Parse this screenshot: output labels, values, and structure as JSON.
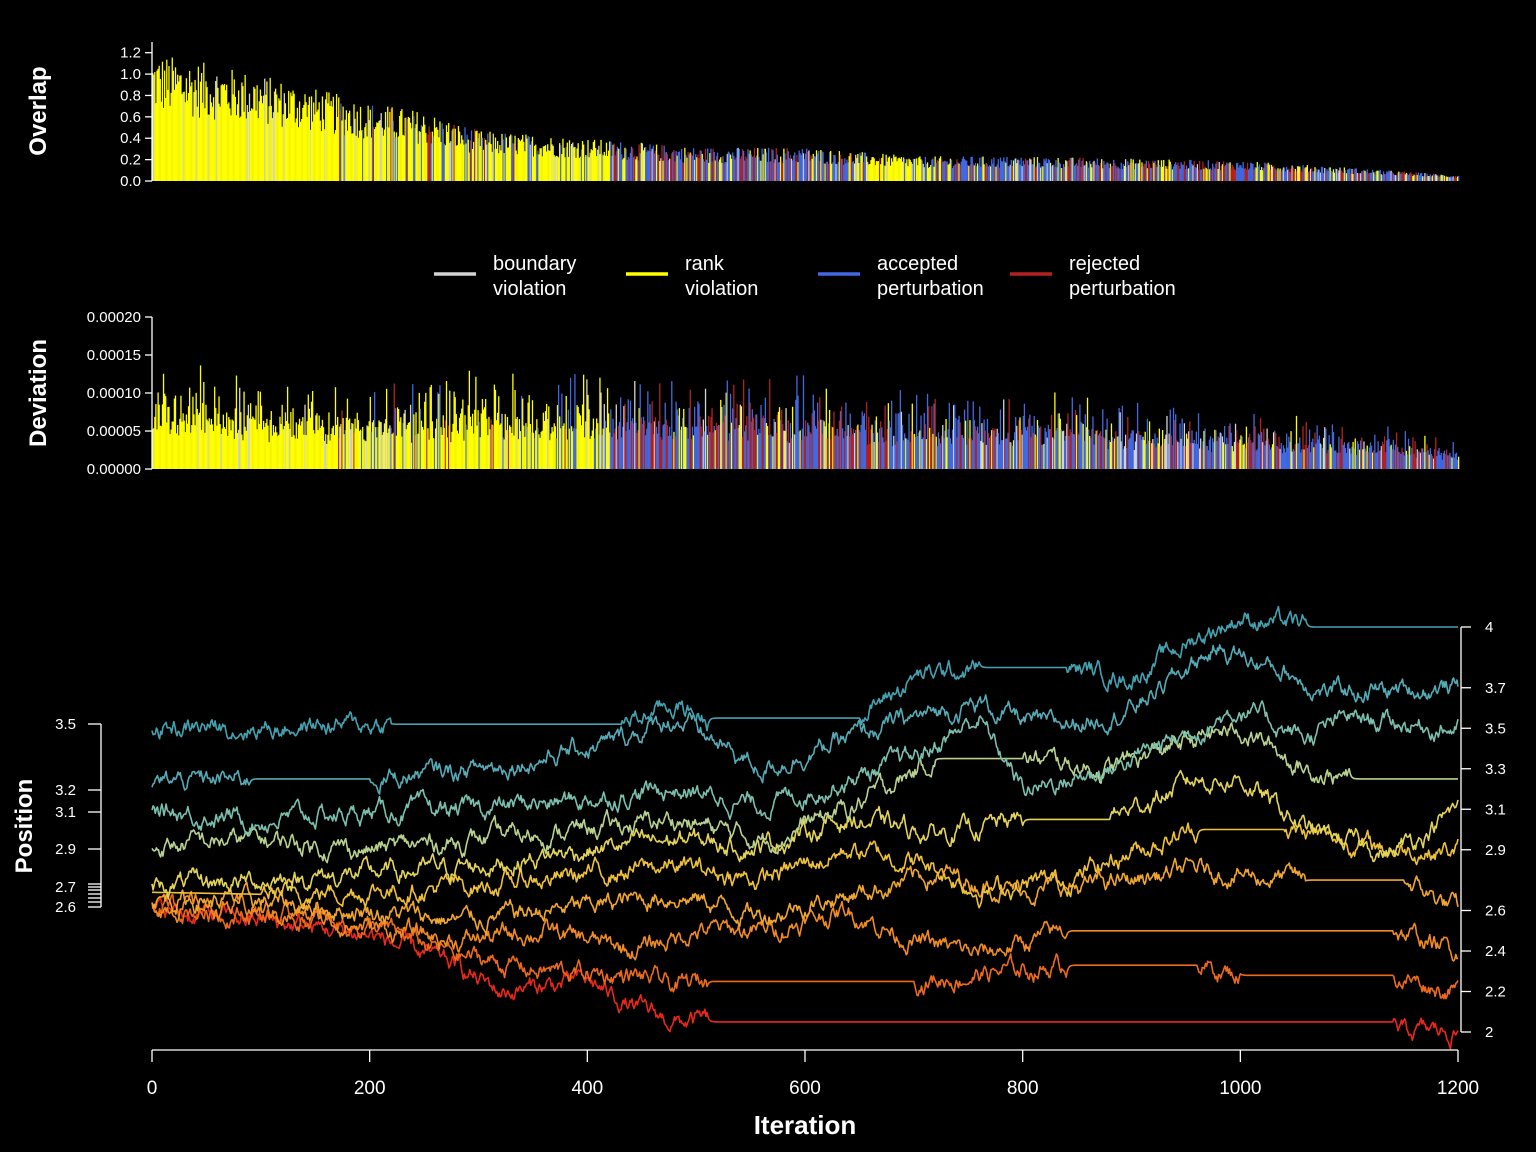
{
  "colors": {
    "boundary": "#d3d3d3",
    "rank": "#ffff00",
    "accepted": "#4169e1",
    "rejected": "#b22222",
    "background": "#000000",
    "text": "#ffffff"
  },
  "legend": {
    "placement": "between top and middle panels",
    "items": [
      {
        "key": "boundary",
        "line1": "boundary",
        "line2": "violation"
      },
      {
        "key": "rank",
        "line1": "rank",
        "line2": "violation"
      },
      {
        "key": "accepted",
        "line1": "accepted",
        "line2": "perturbation"
      },
      {
        "key": "rejected",
        "line1": "rejected",
        "line2": "perturbation"
      }
    ]
  },
  "chart_data": [
    {
      "type": "bar",
      "ylabel": "Overlap",
      "xlim": [
        0,
        1200
      ],
      "ylim": [
        0,
        1.3
      ],
      "yticks": [
        "0.0",
        "0.2",
        "0.4",
        "0.6",
        "0.8",
        "1.0",
        "1.2"
      ],
      "ytick_values": [
        0,
        0.2,
        0.4,
        0.6,
        0.8,
        1.0,
        1.2
      ],
      "note": "one bar per iteration, colored by step type",
      "envelope": [
        [
          0,
          1.15
        ],
        [
          100,
          0.95
        ],
        [
          200,
          0.7
        ],
        [
          250,
          0.62
        ],
        [
          300,
          0.45
        ],
        [
          400,
          0.38
        ],
        [
          500,
          0.3
        ],
        [
          600,
          0.3
        ],
        [
          700,
          0.22
        ],
        [
          800,
          0.22
        ],
        [
          1000,
          0.18
        ],
        [
          1100,
          0.12
        ],
        [
          1200,
          0.05
        ]
      ],
      "type_segments": [
        [
          0,
          170,
          "rank"
        ],
        [
          170,
          220,
          "mixed_rank"
        ],
        [
          220,
          260,
          "mixed_rank_acc"
        ],
        [
          260,
          420,
          "mixed_rank"
        ],
        [
          420,
          640,
          "mixed_all"
        ],
        [
          640,
          720,
          "mixed_rank"
        ],
        [
          720,
          1200,
          "mixed_all"
        ]
      ]
    },
    {
      "type": "bar",
      "ylabel": "Deviation",
      "xlim": [
        0,
        1200
      ],
      "ylim": [
        0,
        0.0002
      ],
      "yticks": [
        "0.00000",
        "0.00005",
        "0.00010",
        "0.00015",
        "0.00020"
      ],
      "ytick_values": [
        0,
        5e-05,
        0.0001,
        0.00015,
        0.0002
      ],
      "envelope": [
        [
          0,
          0.0001
        ],
        [
          200,
          9e-05
        ],
        [
          400,
          0.0001
        ],
        [
          500,
          0.0001
        ],
        [
          600,
          9e-05
        ],
        [
          700,
          8e-05
        ],
        [
          800,
          8e-05
        ],
        [
          1000,
          6e-05
        ],
        [
          1100,
          5e-05
        ],
        [
          1200,
          3e-05
        ]
      ],
      "type_segments": [
        [
          0,
          170,
          "rank"
        ],
        [
          170,
          420,
          "mixed_rank"
        ],
        [
          420,
          1200,
          "mixed_all"
        ]
      ]
    },
    {
      "type": "line",
      "xlabel": "Iteration",
      "ylabel": "Position",
      "xlim": [
        0,
        1200
      ],
      "xticks": [
        "0",
        "200",
        "400",
        "600",
        "800",
        "1000",
        "1200"
      ],
      "xtick_values": [
        0,
        200,
        400,
        600,
        800,
        1000,
        1200
      ],
      "left_axis": {
        "ticks": [
          "3.5",
          "3.2",
          "3.1",
          "2.9",
          "2.7",
          "2.6"
        ],
        "tick_values": [
          3.5,
          3.2,
          3.1,
          2.9,
          2.7,
          2.6
        ]
      },
      "right_axis": {
        "ticks": [
          "4",
          "3.7",
          "3.5",
          "3.3",
          "3.1",
          "2.9",
          "2.6",
          "2.4",
          "2.2",
          "2"
        ],
        "tick_values": [
          4.0,
          3.7,
          3.5,
          3.3,
          3.1,
          2.9,
          2.6,
          2.4,
          2.2,
          2.0
        ]
      },
      "series": [
        {
          "color": "#45a1b0",
          "start": 3.5,
          "end": 4.0,
          "anchors": [
            [
              0,
              3.5
            ],
            [
              220,
              3.52
            ],
            [
              430,
              3.52
            ],
            [
              450,
              3.55
            ],
            [
              480,
              3.62
            ],
            [
              510,
              3.55
            ],
            [
              650,
              3.55
            ],
            [
              700,
              3.75
            ],
            [
              760,
              3.8
            ],
            [
              840,
              3.8
            ],
            [
              900,
              3.75
            ],
            [
              960,
              3.95
            ],
            [
              1000,
              4.05
            ],
            [
              1060,
              4.0
            ],
            [
              1200,
              4.0
            ]
          ]
        },
        {
          "color": "#55aab5",
          "start": 3.2,
          "end": 3.7,
          "anchors": [
            [
              0,
              3.23
            ],
            [
              90,
              3.25
            ],
            [
              200,
              3.25
            ],
            [
              300,
              3.3
            ],
            [
              420,
              3.42
            ],
            [
              480,
              3.55
            ],
            [
              520,
              3.42
            ],
            [
              560,
              3.3
            ],
            [
              640,
              3.45
            ],
            [
              700,
              3.55
            ],
            [
              760,
              3.62
            ],
            [
              820,
              3.5
            ],
            [
              900,
              3.6
            ],
            [
              980,
              3.9
            ],
            [
              1040,
              3.78
            ],
            [
              1080,
              3.68
            ],
            [
              1200,
              3.7
            ]
          ]
        },
        {
          "color": "#7bbfae",
          "start": 3.1,
          "end": 3.5,
          "anchors": [
            [
              0,
              3.1
            ],
            [
              90,
              3.05
            ],
            [
              200,
              3.08
            ],
            [
              300,
              3.1
            ],
            [
              400,
              3.15
            ],
            [
              480,
              3.2
            ],
            [
              560,
              3.12
            ],
            [
              640,
              3.25
            ],
            [
              700,
              3.35
            ],
            [
              760,
              3.55
            ],
            [
              800,
              3.2
            ],
            [
              880,
              3.3
            ],
            [
              960,
              3.5
            ],
            [
              1000,
              3.6
            ],
            [
              1060,
              3.45
            ],
            [
              1100,
              3.55
            ],
            [
              1200,
              3.5
            ]
          ]
        },
        {
          "color": "#b8d18e",
          "start": 2.9,
          "end": 3.3,
          "anchors": [
            [
              0,
              2.92
            ],
            [
              100,
              2.95
            ],
            [
              200,
              2.9
            ],
            [
              300,
              2.95
            ],
            [
              400,
              3.0
            ],
            [
              480,
              3.05
            ],
            [
              560,
              2.95
            ],
            [
              640,
              3.1
            ],
            [
              720,
              3.35
            ],
            [
              800,
              3.35
            ],
            [
              880,
              3.3
            ],
            [
              960,
              3.45
            ],
            [
              1000,
              3.5
            ],
            [
              1060,
              3.3
            ],
            [
              1100,
              3.25
            ],
            [
              1200,
              3.25
            ]
          ]
        },
        {
          "color": "#e3d35a",
          "start": 2.7,
          "end": 3.1,
          "anchors": [
            [
              0,
              2.72
            ],
            [
              100,
              2.75
            ],
            [
              200,
              2.78
            ],
            [
              300,
              2.82
            ],
            [
              400,
              2.9
            ],
            [
              480,
              2.95
            ],
            [
              560,
              2.92
            ],
            [
              640,
              3.05
            ],
            [
              720,
              2.98
            ],
            [
              800,
              3.05
            ],
            [
              880,
              3.05
            ],
            [
              960,
              3.25
            ],
            [
              1000,
              3.25
            ],
            [
              1060,
              3.0
            ],
            [
              1140,
              2.88
            ],
            [
              1200,
              3.1
            ]
          ]
        },
        {
          "color": "#efc13a",
          "start": 2.68,
          "end": 2.9,
          "anchors": [
            [
              0,
              2.69
            ],
            [
              100,
              2.68
            ],
            [
              200,
              2.7
            ],
            [
              300,
              2.72
            ],
            [
              400,
              2.78
            ],
            [
              480,
              2.82
            ],
            [
              560,
              2.75
            ],
            [
              640,
              2.9
            ],
            [
              700,
              2.85
            ],
            [
              760,
              2.7
            ],
            [
              840,
              2.75
            ],
            [
              900,
              2.9
            ],
            [
              960,
              3.0
            ],
            [
              1040,
              3.0
            ],
            [
              1140,
              2.9
            ],
            [
              1200,
              2.9
            ]
          ]
        },
        {
          "color": "#f0a530",
          "start": 2.66,
          "end": 2.6,
          "anchors": [
            [
              0,
              2.66
            ],
            [
              100,
              2.64
            ],
            [
              200,
              2.6
            ],
            [
              280,
              2.55
            ],
            [
              400,
              2.62
            ],
            [
              480,
              2.68
            ],
            [
              560,
              2.58
            ],
            [
              640,
              2.68
            ],
            [
              720,
              2.78
            ],
            [
              800,
              2.7
            ],
            [
              860,
              2.72
            ],
            [
              960,
              2.8
            ],
            [
              1060,
              2.75
            ],
            [
              1150,
              2.75
            ],
            [
              1200,
              2.6
            ]
          ]
        },
        {
          "color": "#ef8a25",
          "start": 2.64,
          "end": 2.4,
          "anchors": [
            [
              0,
              2.64
            ],
            [
              100,
              2.6
            ],
            [
              200,
              2.52
            ],
            [
              280,
              2.45
            ],
            [
              360,
              2.5
            ],
            [
              440,
              2.4
            ],
            [
              500,
              2.5
            ],
            [
              560,
              2.5
            ],
            [
              640,
              2.6
            ],
            [
              700,
              2.45
            ],
            [
              760,
              2.38
            ],
            [
              840,
              2.5
            ],
            [
              960,
              2.5
            ],
            [
              1140,
              2.5
            ],
            [
              1200,
              2.4
            ]
          ]
        },
        {
          "color": "#ec6a1e",
          "start": 2.62,
          "end": 2.2,
          "anchors": [
            [
              0,
              2.62
            ],
            [
              100,
              2.58
            ],
            [
              200,
              2.52
            ],
            [
              280,
              2.38
            ],
            [
              360,
              2.3
            ],
            [
              440,
              2.28
            ],
            [
              480,
              2.22
            ],
            [
              510,
              2.25
            ],
            [
              700,
              2.25
            ],
            [
              840,
              2.33
            ],
            [
              960,
              2.33
            ],
            [
              1000,
              2.28
            ],
            [
              1140,
              2.28
            ],
            [
              1200,
              2.2
            ]
          ]
        },
        {
          "color": "#e8281a",
          "start": 2.6,
          "end": 2.0,
          "anchors": [
            [
              0,
              2.6
            ],
            [
              100,
              2.55
            ],
            [
              200,
              2.48
            ],
            [
              280,
              2.32
            ],
            [
              320,
              2.2
            ],
            [
              400,
              2.25
            ],
            [
              450,
              2.1
            ],
            [
              480,
              2.05
            ],
            [
              510,
              2.05
            ],
            [
              1140,
              2.05
            ],
            [
              1150,
              2.0
            ],
            [
              1200,
              2.0
            ]
          ]
        }
      ]
    }
  ]
}
